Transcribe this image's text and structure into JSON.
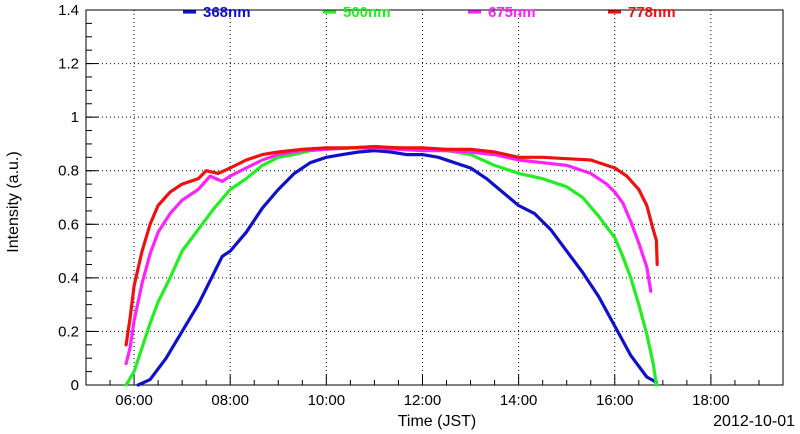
{
  "chart_data": {
    "type": "line",
    "date_label": "2012-10-01",
    "xlabel": "Time (JST)",
    "ylabel": "Intensity (a.u.)",
    "xlim": [
      "05:00",
      "19:30"
    ],
    "ylim": [
      0,
      1.4
    ],
    "grid": true,
    "legend_position": "top",
    "x_ticks": [
      "06:00",
      "08:00",
      "10:00",
      "12:00",
      "14:00",
      "16:00",
      "18:00"
    ],
    "y_ticks": [
      "0",
      "0.2",
      "0.4",
      "0.6",
      "0.8",
      "1",
      "1.2",
      "1.4"
    ],
    "series": [
      {
        "name": "368nm",
        "color": "#1010cc",
        "points": [
          [
            "06:05",
            0.0
          ],
          [
            "06:20",
            0.02
          ],
          [
            "06:40",
            0.1
          ],
          [
            "07:00",
            0.2
          ],
          [
            "07:20",
            0.3
          ],
          [
            "07:40",
            0.42
          ],
          [
            "07:50",
            0.48
          ],
          [
            "08:00",
            0.5
          ],
          [
            "08:20",
            0.57
          ],
          [
            "08:40",
            0.66
          ],
          [
            "09:00",
            0.73
          ],
          [
            "09:20",
            0.79
          ],
          [
            "09:40",
            0.83
          ],
          [
            "10:00",
            0.85
          ],
          [
            "10:20",
            0.86
          ],
          [
            "10:40",
            0.87
          ],
          [
            "11:00",
            0.875
          ],
          [
            "11:20",
            0.87
          ],
          [
            "11:40",
            0.86
          ],
          [
            "12:00",
            0.86
          ],
          [
            "12:20",
            0.85
          ],
          [
            "12:40",
            0.83
          ],
          [
            "13:00",
            0.81
          ],
          [
            "13:20",
            0.77
          ],
          [
            "13:40",
            0.72
          ],
          [
            "14:00",
            0.67
          ],
          [
            "14:20",
            0.64
          ],
          [
            "14:40",
            0.58
          ],
          [
            "15:00",
            0.5
          ],
          [
            "15:20",
            0.42
          ],
          [
            "15:40",
            0.33
          ],
          [
            "16:00",
            0.22
          ],
          [
            "16:20",
            0.11
          ],
          [
            "16:40",
            0.03
          ],
          [
            "16:52",
            0.01
          ]
        ]
      },
      {
        "name": "500nm",
        "color": "#22ee22",
        "points": [
          [
            "05:50",
            0.0
          ],
          [
            "06:00",
            0.05
          ],
          [
            "06:10",
            0.14
          ],
          [
            "06:20",
            0.23
          ],
          [
            "06:30",
            0.31
          ],
          [
            "06:45",
            0.4
          ],
          [
            "07:00",
            0.5
          ],
          [
            "07:20",
            0.58
          ],
          [
            "07:40",
            0.66
          ],
          [
            "08:00",
            0.73
          ],
          [
            "08:20",
            0.77
          ],
          [
            "08:40",
            0.82
          ],
          [
            "09:00",
            0.85
          ],
          [
            "09:20",
            0.86
          ],
          [
            "09:40",
            0.875
          ],
          [
            "10:00",
            0.88
          ],
          [
            "10:30",
            0.885
          ],
          [
            "11:00",
            0.89
          ],
          [
            "11:30",
            0.885
          ],
          [
            "12:00",
            0.88
          ],
          [
            "12:30",
            0.875
          ],
          [
            "13:00",
            0.86
          ],
          [
            "13:30",
            0.82
          ],
          [
            "14:00",
            0.79
          ],
          [
            "14:30",
            0.77
          ],
          [
            "15:00",
            0.74
          ],
          [
            "15:20",
            0.7
          ],
          [
            "15:40",
            0.63
          ],
          [
            "16:00",
            0.55
          ],
          [
            "16:10",
            0.48
          ],
          [
            "16:20",
            0.4
          ],
          [
            "16:30",
            0.3
          ],
          [
            "16:40",
            0.19
          ],
          [
            "16:48",
            0.08
          ],
          [
            "16:52",
            0.0
          ]
        ]
      },
      {
        "name": "675nm",
        "color": "#ff22ff",
        "points": [
          [
            "05:50",
            0.08
          ],
          [
            "05:55",
            0.14
          ],
          [
            "06:00",
            0.24
          ],
          [
            "06:10",
            0.38
          ],
          [
            "06:20",
            0.49
          ],
          [
            "06:30",
            0.57
          ],
          [
            "06:45",
            0.64
          ],
          [
            "07:00",
            0.69
          ],
          [
            "07:20",
            0.73
          ],
          [
            "07:35",
            0.78
          ],
          [
            "07:50",
            0.76
          ],
          [
            "08:00",
            0.78
          ],
          [
            "08:20",
            0.81
          ],
          [
            "08:40",
            0.84
          ],
          [
            "09:00",
            0.86
          ],
          [
            "09:30",
            0.875
          ],
          [
            "10:00",
            0.88
          ],
          [
            "10:30",
            0.885
          ],
          [
            "11:00",
            0.885
          ],
          [
            "11:30",
            0.88
          ],
          [
            "12:00",
            0.875
          ],
          [
            "12:30",
            0.875
          ],
          [
            "13:00",
            0.87
          ],
          [
            "13:30",
            0.86
          ],
          [
            "14:00",
            0.84
          ],
          [
            "14:30",
            0.83
          ],
          [
            "15:00",
            0.82
          ],
          [
            "15:30",
            0.79
          ],
          [
            "15:50",
            0.75
          ],
          [
            "16:00",
            0.72
          ],
          [
            "16:10",
            0.68
          ],
          [
            "16:20",
            0.61
          ],
          [
            "16:30",
            0.53
          ],
          [
            "16:40",
            0.44
          ],
          [
            "16:45",
            0.35
          ]
        ]
      },
      {
        "name": "778nm",
        "color": "#ee1111",
        "points": [
          [
            "05:50",
            0.15
          ],
          [
            "05:55",
            0.25
          ],
          [
            "06:00",
            0.37
          ],
          [
            "06:10",
            0.5
          ],
          [
            "06:20",
            0.6
          ],
          [
            "06:30",
            0.67
          ],
          [
            "06:45",
            0.72
          ],
          [
            "07:00",
            0.75
          ],
          [
            "07:20",
            0.77
          ],
          [
            "07:30",
            0.8
          ],
          [
            "07:45",
            0.79
          ],
          [
            "08:00",
            0.81
          ],
          [
            "08:20",
            0.84
          ],
          [
            "08:40",
            0.86
          ],
          [
            "09:00",
            0.87
          ],
          [
            "09:30",
            0.88
          ],
          [
            "10:00",
            0.885
          ],
          [
            "10:30",
            0.885
          ],
          [
            "11:00",
            0.89
          ],
          [
            "11:30",
            0.885
          ],
          [
            "12:00",
            0.885
          ],
          [
            "12:30",
            0.88
          ],
          [
            "13:00",
            0.88
          ],
          [
            "13:30",
            0.87
          ],
          [
            "14:00",
            0.85
          ],
          [
            "14:30",
            0.85
          ],
          [
            "15:00",
            0.845
          ],
          [
            "15:30",
            0.84
          ],
          [
            "16:00",
            0.81
          ],
          [
            "16:15",
            0.78
          ],
          [
            "16:30",
            0.73
          ],
          [
            "16:40",
            0.67
          ],
          [
            "16:48",
            0.58
          ],
          [
            "16:52",
            0.54
          ],
          [
            "16:53",
            0.45
          ]
        ]
      }
    ]
  }
}
